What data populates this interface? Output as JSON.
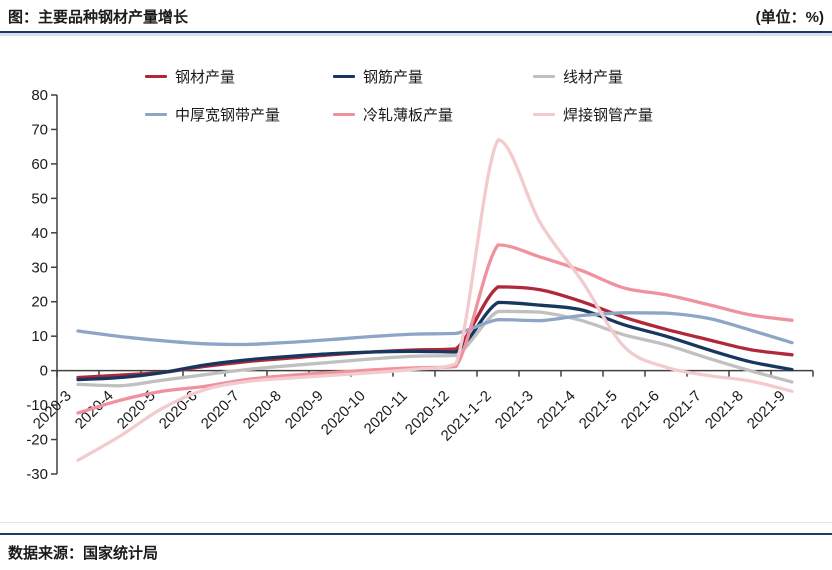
{
  "header": {
    "title": "图：主要品种钢材产量增长",
    "unit_label": "(单位：%)"
  },
  "footer": {
    "source": "数据来源：国家统计局"
  },
  "colors": {
    "rule": "#1f3864",
    "axis": "#404040",
    "text": "#1a1a1a"
  },
  "chart_data": {
    "type": "line",
    "title": "主要品种钢材产量增长",
    "unit": "%",
    "grid": false,
    "smooth": true,
    "legend_position": "top",
    "ylim": [
      -30,
      80
    ],
    "ytick_step": 10,
    "xlabel": "",
    "ylabel": "",
    "categories": [
      "2020-3",
      "2020-4",
      "2020-5",
      "2020-6",
      "2020-7",
      "2020-8",
      "2020-9",
      "2020-10",
      "2020-11",
      "2020-12",
      "2021-1~2",
      "2021-3",
      "2021-4",
      "2021-5",
      "2021-6",
      "2021-7",
      "2021-8",
      "2021-9"
    ],
    "series": [
      {
        "name": "钢材产量",
        "color": "#b0283a",
        "values": [
          -2,
          -1.3,
          -0.5,
          1.2,
          2.6,
          3.6,
          4.6,
          5.4,
          6,
          6.3,
          24.3,
          23.5,
          20,
          15.5,
          12,
          9,
          6.1,
          4.6
        ]
      },
      {
        "name": "钢筋产量",
        "color": "#17375e",
        "values": [
          -2.6,
          -2,
          -0.6,
          1.6,
          3.1,
          4.1,
          4.9,
          5.4,
          5.6,
          5.4,
          19.8,
          19,
          17.6,
          13.3,
          10,
          6.1,
          2.6,
          0.3
        ]
      },
      {
        "name": "线材产量",
        "color": "#c0c0c0",
        "values": [
          -4,
          -4.4,
          -2.8,
          -1.2,
          0.3,
          1.4,
          2.4,
          3.4,
          4.2,
          4.4,
          17.2,
          17,
          14.5,
          10.4,
          7.5,
          3.6,
          0,
          -3.3
        ]
      },
      {
        "name": "中厚宽钢带产量",
        "color": "#8ea6c6",
        "values": [
          11.5,
          9.9,
          8.7,
          7.8,
          7.6,
          8.2,
          9,
          9.9,
          10.6,
          10.8,
          14.8,
          14.5,
          16,
          16.8,
          16.7,
          15.2,
          11.8,
          8.1
        ]
      },
      {
        "name": "冷轧薄板产量",
        "color": "#f0929e",
        "values": [
          -12.3,
          -8.6,
          -6,
          -4.6,
          -2.6,
          -1.4,
          -0.6,
          0.2,
          0.8,
          1.2,
          36.5,
          33,
          29,
          24,
          22,
          19.2,
          16.2,
          14.6
        ]
      },
      {
        "name": "焊接钢管产量",
        "color": "#f2cbce",
        "values": [
          -26,
          -19,
          -11,
          -5.6,
          -3.2,
          -2.2,
          -1.4,
          -0.6,
          0.4,
          2,
          67,
          43,
          26,
          7,
          1,
          -1.4,
          -3,
          -6
        ]
      }
    ]
  }
}
